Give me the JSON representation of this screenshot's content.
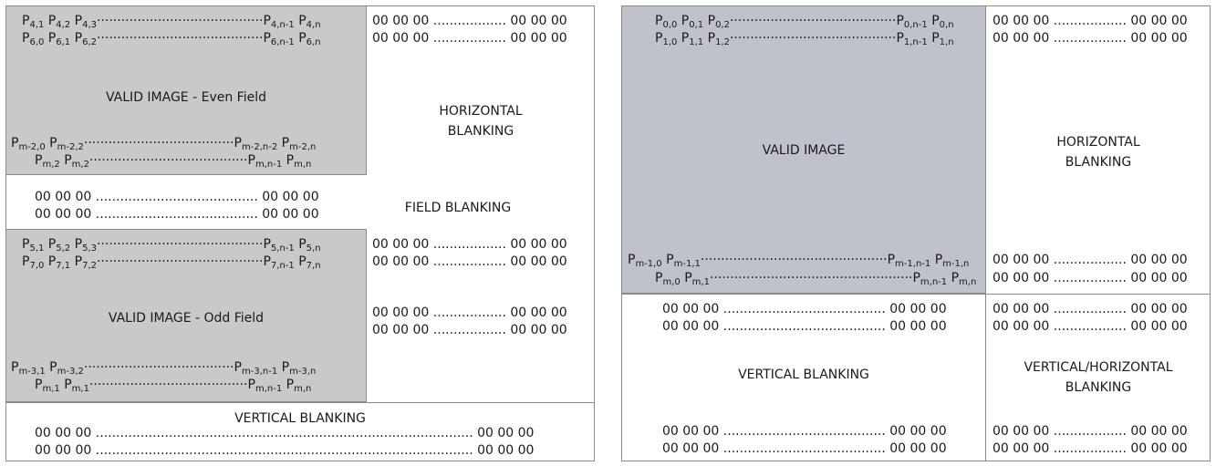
{
  "interlaced": {
    "even_field": {
      "label": "VALID IMAGE - Even Field",
      "rows_top": [
        [
          [
            "P",
            "4,1"
          ],
          [
            "P",
            "4,2"
          ],
          [
            "P",
            "4,3"
          ],
          [
            "·",
            "dots"
          ],
          [
            "P",
            "4,n-1"
          ],
          [
            "P",
            "4,n"
          ]
        ],
        [
          [
            "P",
            "6,0"
          ],
          [
            "P",
            "6,1"
          ],
          [
            "P",
            "6,2"
          ],
          [
            "·",
            "dots"
          ],
          [
            "P",
            "6,n-1"
          ],
          [
            "P",
            "6,n"
          ]
        ]
      ]
    },
    "odd_field": {
      "label": "VALID IMAGE - Odd Field"
    },
    "horizontal_blanking": "HORIZONTAL\nBLANKING",
    "field_blanking": "FIELD BLANKING",
    "vertical_blanking": "VERTICAL BLANKING"
  },
  "progressive": {
    "valid_image": "VALID IMAGE",
    "horizontal_blanking": "HORIZONTAL\nBLANKING",
    "vertical_blanking": "VERTICAL BLANKING",
    "vertical_horizontal_blanking": "VERTICAL/HORIZONTAL\nBLANKING"
  },
  "blank_word": "00 00 00",
  "dots_short": "....................",
  "dots_med": "........................................",
  "dots_long": ".............................................................................................................................................",
  "pixel_rows": {
    "even_1": "P4,1 P4,2 P4,3·························································P4,n-1 P4,n",
    "even_2": "P6,0 P6,1 P6,2·························································P6,n-1 P6,n",
    "even_3": "Pm-2,0 Pm-2,2·····································································Pm-2,n-2 Pm-2,n",
    "even_4": "Pm,2 Pm,2·····························································Pm,n-1 Pm,n",
    "odd_1": "P5,1 P5,2 P5,3·························································P5,n-1 P5,n",
    "odd_2": "P7,0 P7,1 P7,2·························································P7,n-1 P7,n",
    "odd_3": "Pm-3,1 Pm-3,2·····································································Pm-3,n-1 Pm-3,n",
    "odd_4": "Pm,1 Pm,1·····························································Pm,n-1 Pm,n",
    "prog_1": "P0,0 P0,1 P0,2·····································································P0,n-1 P0,n",
    "prog_2": "P1,0 P1,1 P1,2·····································································P1,n-1 P1,n",
    "prog_3": "Pm-1,0 Pm-1,1·············································································Pm-1,n-1 Pm-1,n",
    "prog_4": "Pm,0 Pm,1·············································································Pm,n-1 Pm,n"
  }
}
